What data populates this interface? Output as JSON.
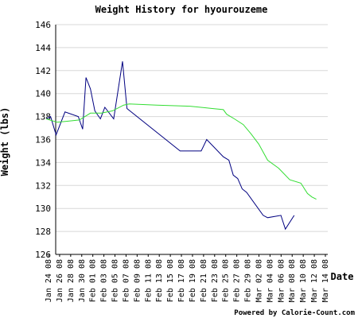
{
  "chart_data": {
    "type": "line",
    "title": "Weight History for hyourouzeme",
    "xlabel": "Date",
    "ylabel": "Weight (lbs)",
    "ylim": [
      126,
      146
    ],
    "yticks": [
      126,
      128,
      130,
      132,
      134,
      136,
      138,
      140,
      142,
      144,
      146
    ],
    "grid": "horizontal",
    "categories": [
      "Jan 24 08",
      "Jan 26 08",
      "Jan 28 08",
      "Jan 30 08",
      "Feb 01 08",
      "Feb 03 08",
      "Feb 05 08",
      "Feb 07 08",
      "Feb 09 08",
      "Feb 11 08",
      "Feb 13 08",
      "Feb 15 08",
      "Feb 17 08",
      "Feb 19 08",
      "Feb 21 08",
      "Feb 23 08",
      "Feb 25 08",
      "Feb 27 08",
      "Feb 29 08",
      "Mar 02 08",
      "Mar 04 08",
      "Mar 06 08",
      "Mar 08 08",
      "Mar 10 08",
      "Mar 12 08",
      "Mar 14 08"
    ],
    "series": [
      {
        "color": "#000080",
        "points": [
          [
            0,
            137.8
          ],
          [
            0.4,
            138.0
          ],
          [
            0.9,
            136.4
          ],
          [
            1.7,
            138.4
          ],
          [
            2.9,
            138.0
          ],
          [
            3.3,
            136.9
          ],
          [
            3.6,
            141.4
          ],
          [
            4.0,
            140.4
          ],
          [
            4.4,
            138.5
          ],
          [
            4.9,
            137.8
          ],
          [
            5.3,
            138.8
          ],
          [
            6.1,
            137.8
          ],
          [
            6.9,
            142.8
          ],
          [
            7.3,
            138.7
          ],
          [
            12.1,
            135.0
          ],
          [
            14.0,
            135.0
          ],
          [
            14.5,
            136.0
          ],
          [
            16.0,
            134.5
          ],
          [
            16.5,
            134.2
          ],
          [
            16.9,
            132.9
          ],
          [
            17.3,
            132.6
          ],
          [
            17.7,
            131.7
          ],
          [
            18.1,
            131.4
          ],
          [
            19.6,
            129.4
          ],
          [
            20.0,
            129.2
          ],
          [
            21.2,
            129.4
          ],
          [
            21.6,
            128.2
          ],
          [
            22.4,
            129.4
          ]
        ]
      },
      {
        "color": "#33dd33",
        "points": [
          [
            0,
            137.8
          ],
          [
            1.0,
            137.5
          ],
          [
            2.0,
            137.6
          ],
          [
            3.0,
            137.7
          ],
          [
            4.0,
            138.3
          ],
          [
            5.0,
            138.3
          ],
          [
            6.0,
            138.5
          ],
          [
            7.0,
            139.0
          ],
          [
            7.5,
            139.1
          ],
          [
            10.0,
            139.0
          ],
          [
            13.0,
            138.9
          ],
          [
            15.0,
            138.7
          ],
          [
            16.0,
            138.6
          ],
          [
            16.3,
            138.2
          ],
          [
            17.0,
            137.8
          ],
          [
            17.8,
            137.3
          ],
          [
            18.5,
            136.5
          ],
          [
            19.2,
            135.6
          ],
          [
            20.0,
            134.2
          ],
          [
            21.0,
            133.5
          ],
          [
            22.0,
            132.5
          ],
          [
            23.0,
            132.2
          ],
          [
            23.6,
            131.3
          ],
          [
            24.0,
            131.0
          ],
          [
            24.4,
            130.8
          ]
        ]
      }
    ]
  },
  "footer": {
    "credit": "Powered by Calorie-Count.com"
  }
}
